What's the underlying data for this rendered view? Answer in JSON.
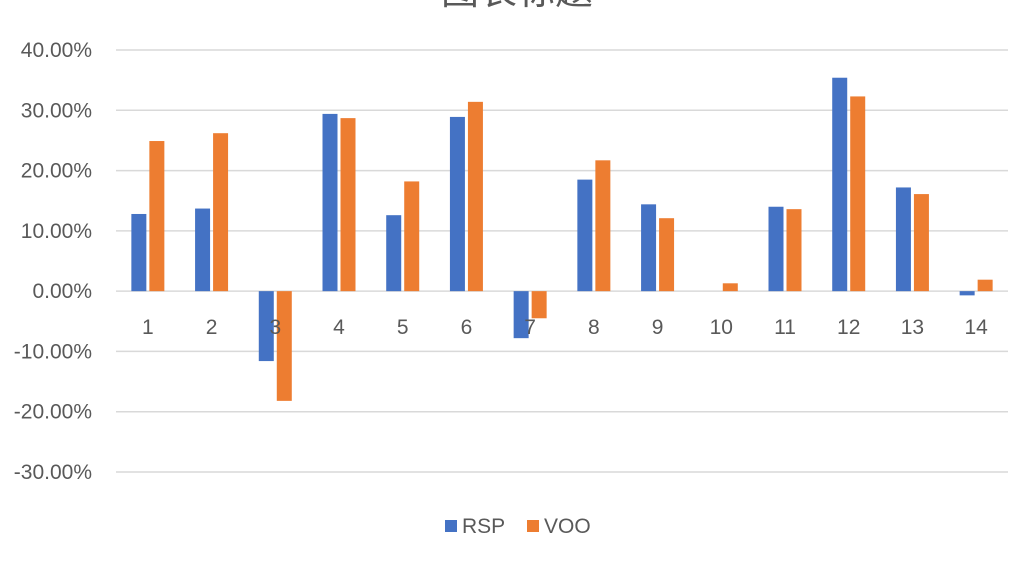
{
  "chart_data": {
    "type": "bar",
    "title": "图表标题",
    "categories": [
      "1",
      "2",
      "3",
      "4",
      "5",
      "6",
      "7",
      "8",
      "9",
      "10",
      "11",
      "12",
      "13",
      "14"
    ],
    "series": [
      {
        "name": "RSP",
        "color": "#4472C4",
        "values": [
          12.8,
          13.7,
          -11.6,
          29.4,
          12.6,
          28.9,
          -7.8,
          18.5,
          14.4,
          0.0,
          14.0,
          35.4,
          17.2,
          -0.7
        ]
      },
      {
        "name": "VOO",
        "color": "#ED7D31",
        "values": [
          24.9,
          26.2,
          -18.2,
          28.7,
          18.2,
          31.4,
          -4.5,
          21.7,
          12.1,
          1.3,
          13.6,
          32.3,
          16.1,
          1.9
        ]
      }
    ],
    "ylim": [
      -30,
      40
    ],
    "yticks": [
      "40.00%",
      "30.00%",
      "20.00%",
      "10.00%",
      "0.00%",
      "-10.00%",
      "-20.00%",
      "-30.00%"
    ],
    "ytick_values": [
      40,
      30,
      20,
      10,
      0,
      -10,
      -20,
      -30
    ],
    "grid": true,
    "legend_position": "bottom"
  }
}
